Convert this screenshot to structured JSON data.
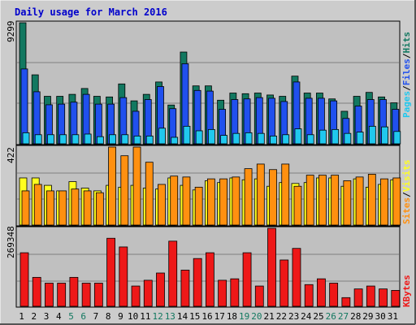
{
  "title": "Daily usage for March 2016",
  "colors": {
    "background": "#c0c0c0",
    "frame": "#cccccc",
    "title": "#0000cc",
    "hits": "#127860",
    "files": "#2050ee",
    "pages": "#20c8ee",
    "visits": "#ffff20",
    "sites": "#ff9010",
    "kbytes": "#ee1818",
    "weekend_label": "#127860",
    "weekday_label": "#000000"
  },
  "chart_data": [
    {
      "type": "bar",
      "panel": "top",
      "categories": [
        "1",
        "2",
        "3",
        "4",
        "5",
        "6",
        "7",
        "8",
        "9",
        "10",
        "11",
        "12",
        "13",
        "14",
        "15",
        "16",
        "17",
        "18",
        "19",
        "20",
        "21",
        "22",
        "23",
        "24",
        "25",
        "26",
        "27",
        "28",
        "29",
        "30",
        "31"
      ],
      "weekend_days": [
        "5",
        "6",
        "12",
        "13",
        "19",
        "20",
        "26",
        "27"
      ],
      "y_max_label": "9299",
      "ylim": [
        0,
        9299
      ],
      "series": [
        {
          "name": "Hits",
          "color": "#127860",
          "values": [
            9299,
            5300,
            3650,
            3650,
            3800,
            4250,
            3650,
            3600,
            4600,
            3300,
            3800,
            4750,
            2980,
            7050,
            4450,
            4450,
            3350,
            3900,
            3850,
            3900,
            3750,
            3650,
            5200,
            3900,
            3900,
            3450,
            2500,
            3650,
            3950,
            3600,
            3150
          ]
        },
        {
          "name": "Files",
          "color": "#2050ee",
          "values": [
            5750,
            4000,
            3000,
            3050,
            3200,
            3800,
            3050,
            3050,
            3550,
            2500,
            3400,
            4400,
            2700,
            6150,
            4100,
            4050,
            2650,
            3400,
            3450,
            3550,
            3500,
            3250,
            4750,
            3500,
            3500,
            3300,
            1950,
            2900,
            3400,
            3400,
            2650
          ]
        },
        {
          "name": "Pages",
          "color": "#20c8ee",
          "values": [
            850,
            700,
            700,
            700,
            700,
            750,
            550,
            700,
            700,
            600,
            600,
            1200,
            500,
            1350,
            1000,
            1100,
            650,
            800,
            850,
            800,
            600,
            700,
            1150,
            700,
            1050,
            1100,
            800,
            900,
            1350,
            1300,
            950
          ]
        }
      ]
    },
    {
      "type": "bar",
      "panel": "middle",
      "categories": [
        "1",
        "2",
        "3",
        "4",
        "5",
        "6",
        "7",
        "8",
        "9",
        "10",
        "11",
        "12",
        "13",
        "14",
        "15",
        "16",
        "17",
        "18",
        "19",
        "20",
        "21",
        "22",
        "23",
        "24",
        "25",
        "26",
        "27",
        "28",
        "29",
        "30",
        "31"
      ],
      "y_max_label": "422",
      "ylim": [
        0,
        422
      ],
      "series": [
        {
          "name": "Sites",
          "color": "#ff9010",
          "values": [
            185,
            220,
            185,
            185,
            195,
            185,
            175,
            422,
            375,
            422,
            340,
            220,
            265,
            260,
            205,
            250,
            250,
            260,
            305,
            330,
            300,
            330,
            210,
            270,
            270,
            270,
            240,
            260,
            275,
            250,
            255
          ]
        },
        {
          "name": "Visits",
          "color": "#ffff20",
          "values": [
            255,
            255,
            215,
            185,
            235,
            200,
            185,
            215,
            205,
            215,
            200,
            195,
            255,
            215,
            190,
            240,
            230,
            255,
            245,
            250,
            210,
            230,
            225,
            230,
            255,
            255,
            210,
            250,
            205,
            220,
            245
          ]
        }
      ]
    },
    {
      "type": "bar",
      "panel": "bottom",
      "categories": [
        "1",
        "2",
        "3",
        "4",
        "5",
        "6",
        "7",
        "8",
        "9",
        "10",
        "11",
        "12",
        "13",
        "14",
        "15",
        "16",
        "17",
        "18",
        "19",
        "20",
        "21",
        "22",
        "23",
        "24",
        "25",
        "26",
        "27",
        "28",
        "29",
        "30",
        "31"
      ],
      "y_max_label": "269348",
      "ylim": [
        0,
        269348
      ],
      "series": [
        {
          "name": "KBytes",
          "color": "#ee1818",
          "values": [
            185000,
            100000,
            80000,
            80000,
            100000,
            80000,
            80000,
            235000,
            205000,
            70000,
            90000,
            115000,
            225000,
            125000,
            165000,
            185000,
            90000,
            95000,
            185000,
            70000,
            269348,
            160000,
            200000,
            75000,
            95000,
            80000,
            30000,
            60000,
            70000,
            60000,
            55000
          ]
        }
      ]
    }
  ]
}
